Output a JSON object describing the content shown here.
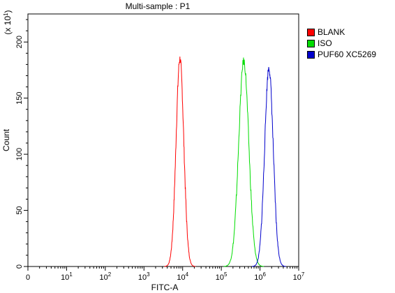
{
  "chart_data": {
    "type": "line",
    "title": "Multi-sample : P1",
    "xlabel": "FITC-A",
    "ylabel": "Count",
    "y_multiplier": "(x 10",
    "y_multiplier_exp": "1",
    "y_multiplier_close": ")",
    "x_scale": "log",
    "xlim": [
      0,
      10000000
    ],
    "ylim": [
      0,
      225
    ],
    "x_ticks": [
      {
        "base": "0",
        "exp": "",
        "value": 0
      },
      {
        "base": "10",
        "exp": "1",
        "value": 10
      },
      {
        "base": "10",
        "exp": "2",
        "value": 100
      },
      {
        "base": "10",
        "exp": "3",
        "value": 1000
      },
      {
        "base": "10",
        "exp": "4",
        "value": 10000
      },
      {
        "base": "10",
        "exp": "5",
        "value": 100000
      },
      {
        "base": "10",
        "exp": "6",
        "value": 1000000
      },
      {
        "base": "10",
        "exp": "7",
        "value": 10000000
      }
    ],
    "y_ticks": [
      "0",
      "50",
      "100",
      "150",
      "200"
    ],
    "y_tick_values": [
      0,
      50,
      100,
      150,
      200
    ],
    "legend_position": "right",
    "series": [
      {
        "name": "BLANK",
        "color": "#ff0000",
        "peak_x": 8500,
        "peak_y": 185,
        "sigma_decades": 0.1
      },
      {
        "name": "ISO",
        "color": "#00dd00",
        "peak_x": 380000,
        "peak_y": 183,
        "sigma_decades": 0.13
      },
      {
        "name": "PUF60 XC5269",
        "color": "#0000cc",
        "peak_x": 1700000,
        "peak_y": 177,
        "sigma_decades": 0.11
      }
    ]
  }
}
